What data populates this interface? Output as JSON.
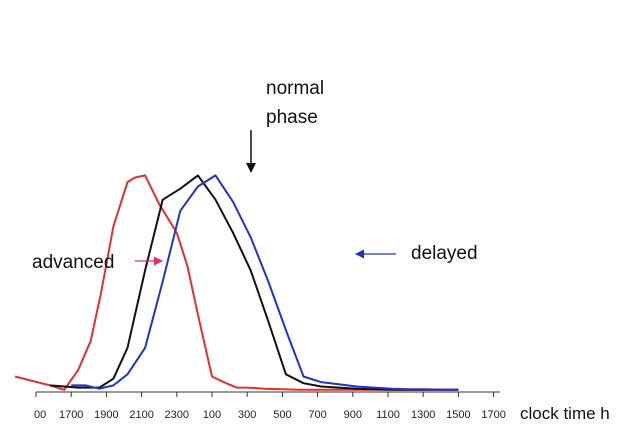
{
  "chart_data": {
    "type": "line",
    "title": "",
    "xlabel": "clock time h",
    "ylabel": "",
    "x_ticks": [
      "00",
      "1700",
      "1900",
      "2100",
      "2300",
      "100",
      "300",
      "500",
      "700",
      "900",
      "1100",
      "1300",
      "1500",
      "1700"
    ],
    "grid": false,
    "legend": "none",
    "series": [
      {
        "name": "advanced",
        "color": "#e03030",
        "x": [
          -0.6,
          0.4,
          0.8,
          1.2,
          1.55,
          1.85,
          2.2,
          2.6,
          2.8,
          3.1,
          3.5,
          4.0,
          4.3,
          4.6,
          5.0,
          5.4,
          5.7,
          6.0,
          6.5,
          7.0,
          7.5,
          8.0,
          9.0,
          10.0,
          11.0,
          12.0
        ],
        "values": [
          0.07,
          0.03,
          0.01,
          0.1,
          0.23,
          0.45,
          0.75,
          0.95,
          0.97,
          0.98,
          0.85,
          0.72,
          0.57,
          0.35,
          0.07,
          0.04,
          0.02,
          0.02,
          0.015,
          0.012,
          0.01,
          0.01,
          0.01,
          0.01,
          0.01,
          0.01
        ]
      },
      {
        "name": "normal phase",
        "color": "#111111",
        "x": [
          0.4,
          1.2,
          1.8,
          2.2,
          2.6,
          3.1,
          3.6,
          4.1,
          4.6,
          5.1,
          5.6,
          6.1,
          6.6,
          7.1,
          7.6,
          8.1,
          8.6,
          9.1,
          9.6,
          10.1,
          10.6,
          11.1,
          12.0
        ],
        "values": [
          0.03,
          0.02,
          0.02,
          0.06,
          0.2,
          0.55,
          0.87,
          0.92,
          0.98,
          0.87,
          0.72,
          0.55,
          0.32,
          0.08,
          0.04,
          0.025,
          0.02,
          0.015,
          0.012,
          0.01,
          0.01,
          0.01,
          0.01
        ]
      },
      {
        "name": "delayed",
        "color": "#2233c8",
        "x": [
          1.0,
          1.4,
          1.8,
          2.2,
          2.6,
          3.1,
          3.6,
          4.1,
          4.6,
          5.1,
          5.6,
          6.1,
          6.6,
          7.1,
          7.6,
          8.1,
          8.6,
          9.1,
          9.6,
          10.1,
          10.6,
          11.1,
          11.6,
          12.0
        ],
        "values": [
          0.03,
          0.03,
          0.015,
          0.03,
          0.08,
          0.2,
          0.5,
          0.82,
          0.93,
          0.98,
          0.86,
          0.7,
          0.5,
          0.28,
          0.07,
          0.045,
          0.035,
          0.025,
          0.02,
          0.015,
          0.012,
          0.012,
          0.01,
          0.01
        ]
      }
    ],
    "annotations": {
      "advanced": "advanced",
      "normal_line1": "normal",
      "normal_line2": "phase",
      "delayed": "delayed"
    }
  }
}
